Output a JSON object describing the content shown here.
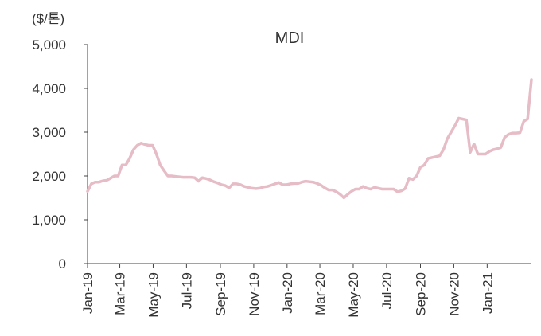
{
  "chart_data": {
    "type": "line",
    "title": "MDI",
    "unit_label": "($/톤)",
    "ylim": [
      0,
      5000
    ],
    "y_ticks": [
      "0",
      "1,000",
      "2,000",
      "3,000",
      "4,000",
      "5,000"
    ],
    "x_tick_labels": [
      "Jan-19",
      "Mar-19",
      "May-19",
      "Jul-19",
      "Sep-19",
      "Nov-19",
      "Jan-20",
      "Mar-20",
      "May-20",
      "Jul-20",
      "Sep-20",
      "Nov-20",
      "Jan-21"
    ],
    "grid": false,
    "legend": "none",
    "series": [
      {
        "color": "#e6bcc6",
        "x": [
          "2019-01-01",
          "2019-01-08",
          "2019-01-15",
          "2019-01-22",
          "2019-01-29",
          "2019-02-05",
          "2019-02-12",
          "2019-02-19",
          "2019-02-26",
          "2019-03-05",
          "2019-03-12",
          "2019-03-19",
          "2019-03-26",
          "2019-04-02",
          "2019-04-09",
          "2019-04-16",
          "2019-04-23",
          "2019-04-30",
          "2019-05-07",
          "2019-05-14",
          "2019-05-21",
          "2019-05-28",
          "2019-06-04",
          "2019-06-11",
          "2019-06-18",
          "2019-06-25",
          "2019-07-02",
          "2019-07-09",
          "2019-07-16",
          "2019-07-23",
          "2019-07-30",
          "2019-08-06",
          "2019-08-13",
          "2019-08-20",
          "2019-08-27",
          "2019-09-03",
          "2019-09-10",
          "2019-09-17",
          "2019-09-24",
          "2019-10-01",
          "2019-10-08",
          "2019-10-15",
          "2019-10-22",
          "2019-10-29",
          "2019-11-05",
          "2019-11-12",
          "2019-11-19",
          "2019-11-26",
          "2019-12-03",
          "2019-12-10",
          "2019-12-17",
          "2019-12-24",
          "2019-12-31",
          "2020-01-07",
          "2020-01-14",
          "2020-01-21",
          "2020-01-28",
          "2020-02-04",
          "2020-02-11",
          "2020-02-18",
          "2020-02-25",
          "2020-03-03",
          "2020-03-10",
          "2020-03-17",
          "2020-03-24",
          "2020-03-31",
          "2020-04-07",
          "2020-04-14",
          "2020-04-21",
          "2020-04-28",
          "2020-05-05",
          "2020-05-12",
          "2020-05-19",
          "2020-05-26",
          "2020-06-02",
          "2020-06-09",
          "2020-06-16",
          "2020-06-23",
          "2020-06-30",
          "2020-07-07",
          "2020-07-14",
          "2020-07-21",
          "2020-07-28",
          "2020-08-04",
          "2020-08-11",
          "2020-08-18",
          "2020-08-25",
          "2020-09-01",
          "2020-09-08",
          "2020-09-15",
          "2020-09-22",
          "2020-09-29",
          "2020-10-06",
          "2020-10-13",
          "2020-10-20",
          "2020-10-27",
          "2020-11-03",
          "2020-11-10",
          "2020-11-17",
          "2020-11-24",
          "2020-12-01",
          "2020-12-08",
          "2020-12-15",
          "2020-12-22",
          "2020-12-29",
          "2021-01-05",
          "2021-01-12",
          "2021-01-19",
          "2021-01-26",
          "2021-02-02",
          "2021-02-09",
          "2021-02-16",
          "2021-02-23",
          "2021-03-02",
          "2021-03-09",
          "2021-03-16",
          "2021-03-23"
        ],
        "values": [
          1650,
          1820,
          1860,
          1860,
          1890,
          1900,
          1950,
          2000,
          2000,
          2250,
          2250,
          2400,
          2600,
          2700,
          2750,
          2720,
          2700,
          2700,
          2500,
          2250,
          2120,
          2000,
          2000,
          1990,
          1980,
          1970,
          1970,
          1970,
          1960,
          1880,
          1960,
          1940,
          1910,
          1870,
          1840,
          1800,
          1780,
          1730,
          1820,
          1820,
          1800,
          1760,
          1740,
          1720,
          1710,
          1720,
          1750,
          1760,
          1790,
          1820,
          1850,
          1800,
          1800,
          1820,
          1830,
          1830,
          1860,
          1880,
          1870,
          1860,
          1830,
          1790,
          1730,
          1680,
          1680,
          1640,
          1580,
          1500,
          1580,
          1650,
          1700,
          1700,
          1760,
          1720,
          1700,
          1740,
          1720,
          1700,
          1700,
          1700,
          1700,
          1640,
          1660,
          1710,
          1950,
          1920,
          2000,
          2200,
          2250,
          2400,
          2420,
          2440,
          2460,
          2600,
          2850,
          3000,
          3150,
          3320,
          3300,
          3280,
          2540,
          2730,
          2500,
          2500,
          2500,
          2560,
          2600,
          2620,
          2650,
          2880,
          2950,
          2980,
          2980,
          2990,
          3250,
          3300,
          4200
        ]
      }
    ]
  }
}
